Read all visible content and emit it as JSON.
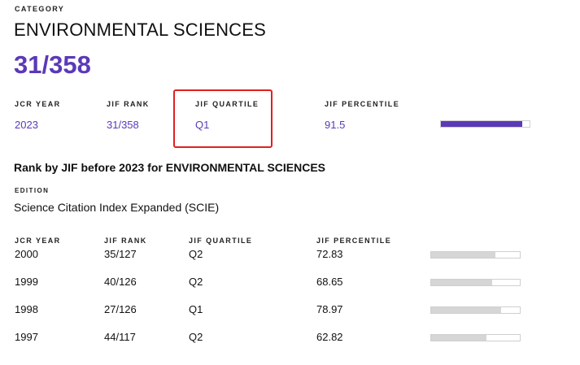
{
  "category": {
    "label": "CATEGORY",
    "title": "ENVIRONMENTAL SCIENCES",
    "rank": "31/358"
  },
  "current": {
    "headers": {
      "jcr_year": "JCR YEAR",
      "jif_rank": "JIF RANK",
      "jif_quartile": "JIF QUARTILE",
      "jif_percentile": "JIF PERCENTILE"
    },
    "values": {
      "jcr_year": "2023",
      "jif_rank": "31/358",
      "jif_quartile": "Q1",
      "jif_percentile": "91.5",
      "percentile_value": 91.5
    }
  },
  "history": {
    "title": "Rank by JIF before 2023 for ENVIRONMENTAL SCIENCES",
    "edition_label": "EDITION",
    "edition_value": "Science Citation Index Expanded (SCIE)",
    "headers": {
      "jcr_year": "JCR YEAR",
      "jif_rank": "JIF RANK",
      "jif_quartile": "JIF QUARTILE",
      "jif_percentile": "JIF PERCENTILE"
    },
    "rows": [
      {
        "year": "2000",
        "rank": "35/127",
        "quartile": "Q2",
        "percentile": "72.83",
        "percentile_value": 72.83
      },
      {
        "year": "1999",
        "rank": "40/126",
        "quartile": "Q2",
        "percentile": "68.65",
        "percentile_value": 68.65
      },
      {
        "year": "1998",
        "rank": "27/126",
        "quartile": "Q1",
        "percentile": "78.97",
        "percentile_value": 78.97
      },
      {
        "year": "1997",
        "rank": "44/117",
        "quartile": "Q2",
        "percentile": "62.82",
        "percentile_value": 62.82
      }
    ]
  },
  "colors": {
    "accent": "#5b39b8",
    "highlight": "#e02020",
    "bar_gray": "#d6d6d6"
  }
}
